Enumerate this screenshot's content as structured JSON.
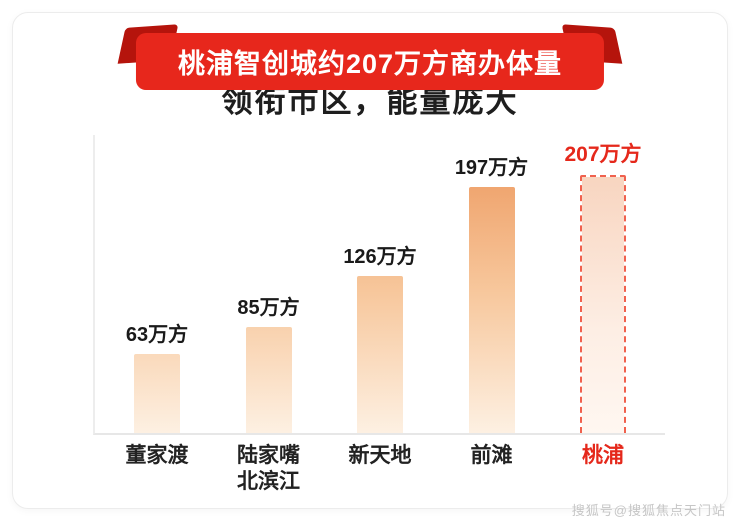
{
  "banner": {
    "text": "桃浦智创城约207万方商办体量"
  },
  "title": "领衔市区，能量庞大",
  "chart_data": {
    "type": "bar",
    "categories": [
      "董家渡",
      "陆家嘴\n北滨江",
      "新天地",
      "前滩",
      "桃浦"
    ],
    "values": [
      63,
      85,
      126,
      197,
      207
    ],
    "value_labels": [
      "63万方",
      "85万方",
      "126万方",
      "197万方",
      "207万方"
    ],
    "highlight_index": 4,
    "title": "领衔市区，能量庞大",
    "xlabel": "",
    "ylabel": "",
    "ylim": [
      0,
      207
    ],
    "grid": false,
    "legend": false,
    "bar_gradient_top": "#efa26b",
    "bar_gradient_bottom": "#fdf0e2",
    "highlight_border_color": "#f0614e",
    "highlight_text_color": "#e5281b"
  },
  "colors": {
    "banner_red": "#e7271c",
    "banner_tail_red": "#b5140c",
    "axis_gray": "#e7e7e7",
    "text_dark": "#1e1e1e"
  },
  "watermark": "搜狐号@搜狐焦点天门站"
}
